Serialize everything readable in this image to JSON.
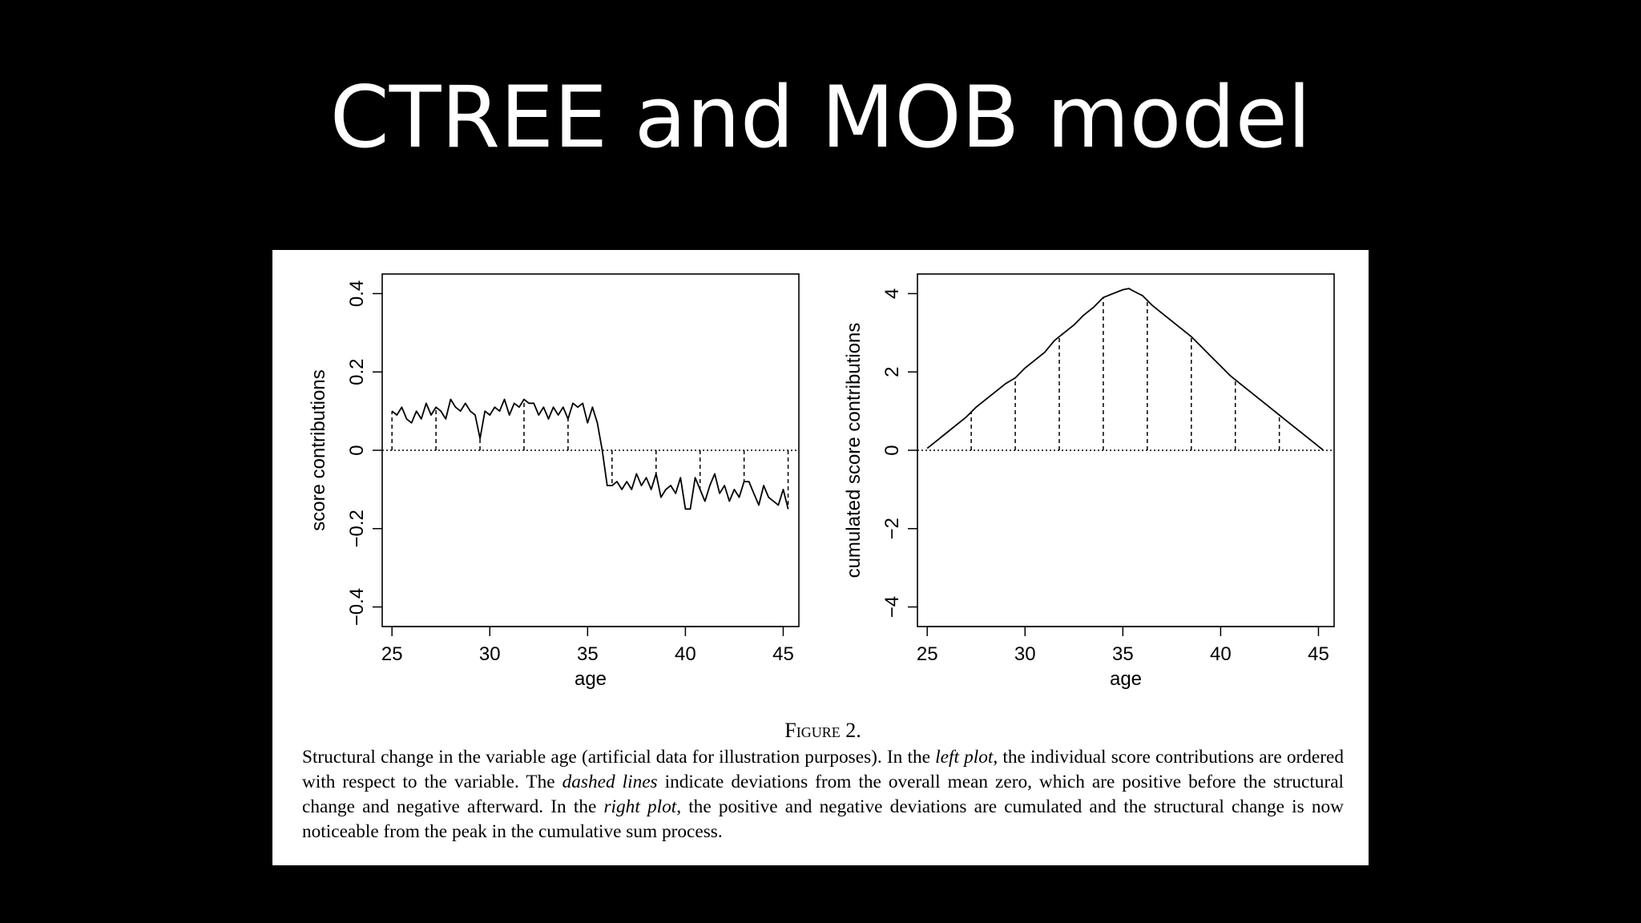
{
  "slide": {
    "title": "CTREE and MOB model"
  },
  "figure": {
    "label": "Figure 2.",
    "caption_parts": [
      {
        "text": "Structural change in the variable age (artificial data for illustration purposes). In the ",
        "italic": false
      },
      {
        "text": "left plot",
        "italic": true
      },
      {
        "text": ", the individual score contributions are ordered with respect to the variable. The ",
        "italic": false
      },
      {
        "text": "dashed lines",
        "italic": true
      },
      {
        "text": " indicate deviations from the overall mean zero, which are positive before the structural change and negative afterward. In the ",
        "italic": false
      },
      {
        "text": "right plot",
        "italic": true
      },
      {
        "text": ", the positive and negative deviations are cumulated and the structural change is now noticeable from the peak in the cumulative sum process.",
        "italic": false
      }
    ]
  },
  "chart_data": [
    {
      "type": "line",
      "xlabel": "age",
      "ylabel": "score contributions",
      "xlim": [
        24.5,
        45.8
      ],
      "ylim": [
        -0.45,
        0.45
      ],
      "xticks": [
        25,
        30,
        35,
        40,
        45
      ],
      "yticks": [
        -0.4,
        -0.2,
        0,
        0.2,
        0.4
      ],
      "ytick_labels": [
        "−0.4",
        "−0.2",
        "0",
        "0.2",
        "0.4"
      ],
      "reference_line": {
        "y": 0,
        "style": "dotted"
      },
      "dashed_drops_x": [
        25.0,
        27.25,
        29.5,
        31.75,
        34.0,
        36.25,
        38.5,
        40.75,
        43.0,
        45.25
      ],
      "series": [
        {
          "x": [
            25.0,
            25.25,
            25.5,
            25.75,
            26.0,
            26.25,
            26.5,
            26.75,
            27.0,
            27.25,
            27.5,
            27.75,
            28.0,
            28.25,
            28.5,
            28.75,
            29.0,
            29.25,
            29.5,
            29.75,
            30.0,
            30.25,
            30.5,
            30.75,
            31.0,
            31.25,
            31.5,
            31.75,
            32.0,
            32.25,
            32.5,
            32.75,
            33.0,
            33.25,
            33.5,
            33.75,
            34.0,
            34.25,
            34.5,
            34.75,
            35.0,
            35.25,
            35.5,
            35.75,
            36.0,
            36.25,
            36.5,
            36.75,
            37.0,
            37.25,
            37.5,
            37.75,
            38.0,
            38.25,
            38.5,
            38.75,
            39.0,
            39.25,
            39.5,
            39.75,
            40.0,
            40.25,
            40.5,
            40.75,
            41.0,
            41.25,
            41.5,
            41.75,
            42.0,
            42.25,
            42.5,
            42.75,
            43.0,
            43.25,
            43.5,
            43.75,
            44.0,
            44.25,
            44.5,
            44.75,
            45.0,
            45.25
          ],
          "values": [
            0.1,
            0.09,
            0.11,
            0.08,
            0.07,
            0.1,
            0.08,
            0.12,
            0.09,
            0.11,
            0.1,
            0.08,
            0.13,
            0.11,
            0.1,
            0.12,
            0.1,
            0.09,
            0.03,
            0.1,
            0.09,
            0.11,
            0.1,
            0.13,
            0.09,
            0.12,
            0.11,
            0.13,
            0.12,
            0.12,
            0.09,
            0.11,
            0.08,
            0.11,
            0.09,
            0.11,
            0.08,
            0.12,
            0.11,
            0.12,
            0.07,
            0.11,
            0.07,
            0.0,
            -0.09,
            -0.09,
            -0.08,
            -0.1,
            -0.08,
            -0.1,
            -0.06,
            -0.09,
            -0.07,
            -0.1,
            -0.06,
            -0.12,
            -0.1,
            -0.09,
            -0.11,
            -0.07,
            -0.15,
            -0.15,
            -0.07,
            -0.1,
            -0.13,
            -0.09,
            -0.06,
            -0.11,
            -0.09,
            -0.13,
            -0.1,
            -0.12,
            -0.08,
            -0.08,
            -0.11,
            -0.14,
            -0.09,
            -0.12,
            -0.13,
            -0.14,
            -0.1,
            -0.15
          ]
        }
      ]
    },
    {
      "type": "line",
      "xlabel": "age",
      "ylabel": "cumulated score contributions",
      "xlim": [
        24.5,
        45.8
      ],
      "ylim": [
        -4.5,
        4.5
      ],
      "xticks": [
        25,
        30,
        35,
        40,
        45
      ],
      "yticks": [
        -4,
        -2,
        0,
        2,
        4
      ],
      "ytick_labels": [
        "−4",
        "−2",
        "0",
        "2",
        "4"
      ],
      "reference_line": {
        "y": 0,
        "style": "dotted"
      },
      "dashed_drops_x": [
        27.25,
        29.5,
        31.75,
        34.0,
        36.25,
        38.5,
        40.75,
        43.0
      ],
      "series": [
        {
          "x": [
            25.0,
            25.5,
            26.0,
            26.5,
            27.0,
            27.5,
            28.0,
            28.5,
            29.0,
            29.5,
            30.0,
            30.5,
            31.0,
            31.5,
            32.0,
            32.5,
            33.0,
            33.5,
            34.0,
            34.5,
            35.0,
            35.3,
            35.6,
            36.0,
            36.5,
            37.0,
            37.5,
            38.0,
            38.5,
            39.0,
            39.5,
            40.0,
            40.5,
            41.0,
            41.5,
            42.0,
            42.5,
            43.0,
            43.5,
            44.0,
            44.5,
            45.0,
            45.25
          ],
          "values": [
            0.05,
            0.25,
            0.45,
            0.65,
            0.85,
            1.1,
            1.3,
            1.5,
            1.7,
            1.85,
            2.1,
            2.3,
            2.5,
            2.8,
            3.0,
            3.2,
            3.45,
            3.65,
            3.9,
            4.0,
            4.1,
            4.13,
            4.05,
            3.95,
            3.7,
            3.5,
            3.3,
            3.1,
            2.9,
            2.65,
            2.4,
            2.15,
            1.9,
            1.7,
            1.5,
            1.3,
            1.1,
            0.9,
            0.7,
            0.5,
            0.3,
            0.1,
            0.0
          ]
        }
      ]
    }
  ]
}
